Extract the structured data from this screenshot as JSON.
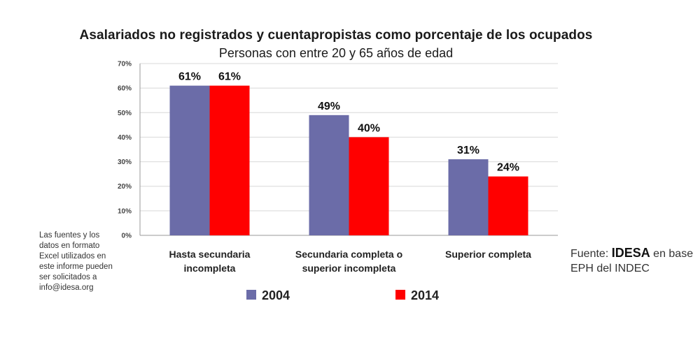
{
  "colors": {
    "series_2004": "#6b6ca8",
    "series_2014": "#ff0000",
    "grid": "#d8d8d8",
    "axis": "#9a9a9a"
  },
  "note": "Las fuentes y los\ndatos en formato\nExcel utilizados en\neste informe pueden\nser solicitados a\ninfo@idesa.org",
  "source": {
    "prefix": "Fuente: ",
    "brand": "IDESA",
    "suffix": " en base EPH del INDEC"
  },
  "chart_data": {
    "type": "bar",
    "title": "Asalariados no registrados y cuentapropistas como porcentaje de los ocupados",
    "subtitle": "Personas con entre 20 y 65 años de edad",
    "categories": [
      [
        "Hasta secundaria",
        "incompleta"
      ],
      [
        "Secundaria completa o",
        "superior incompleta"
      ],
      [
        "Superior completa"
      ]
    ],
    "series": [
      {
        "name": "2004",
        "values": [
          61,
          49,
          31
        ],
        "labels": [
          "61%",
          "49%",
          "31%"
        ],
        "color": "#6b6ca8"
      },
      {
        "name": "2014",
        "values": [
          61,
          40,
          24
        ],
        "labels": [
          "61%",
          "40%",
          "24%"
        ],
        "color": "#ff0000"
      }
    ],
    "ylim": [
      0,
      70
    ],
    "yticks": [
      0,
      10,
      20,
      30,
      40,
      50,
      60,
      70
    ],
    "ytick_labels": [
      "0%",
      "10%",
      "20%",
      "30%",
      "40%",
      "50%",
      "60%",
      "70%"
    ],
    "grid": true,
    "legend_position": "bottom"
  }
}
